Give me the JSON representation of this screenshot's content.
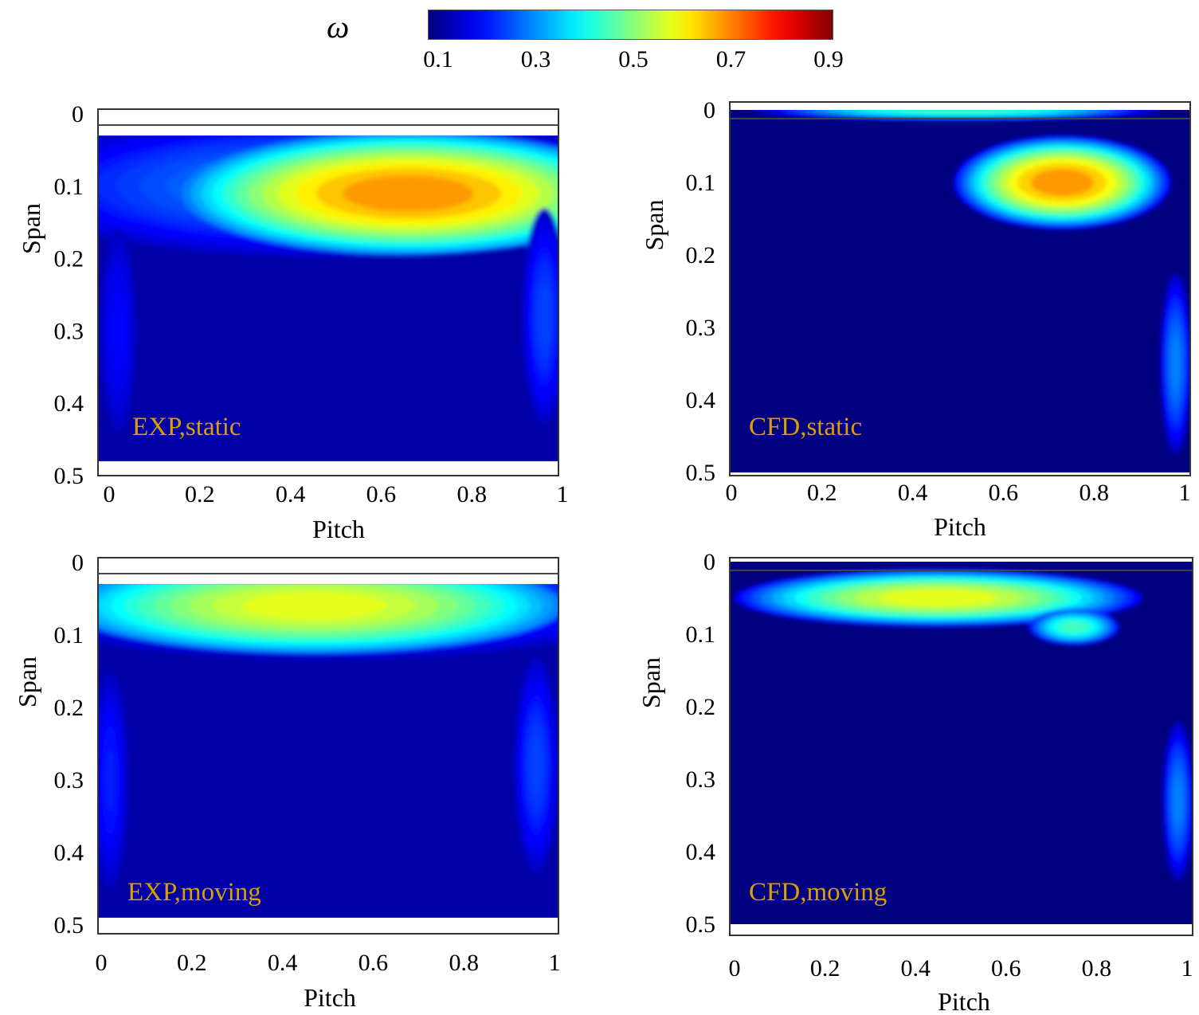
{
  "chart_data": {
    "type": "heatmap",
    "colorbar": {
      "label": "ω",
      "range": [
        0.1,
        0.9
      ],
      "ticks": [
        "0.1",
        "0.3",
        "0.5",
        "0.7",
        "0.9"
      ],
      "colormap": "jet"
    },
    "panels": [
      {
        "id": "exp-static",
        "label": "EXP,static",
        "xlabel": "Pitch",
        "ylabel": "Span",
        "xticks": [
          "0",
          "0.2",
          "0.4",
          "0.6",
          "0.8",
          "1"
        ],
        "yticks": [
          "0",
          "0.1",
          "0.2",
          "0.3",
          "0.4",
          "0.5"
        ],
        "xlim": [
          0,
          1
        ],
        "ylim": [
          0,
          0.5
        ],
        "background": 0.13,
        "data_span": [
          0.03,
          0.48
        ],
        "features": [
          {
            "pitch": 0.5,
            "span": 0.1,
            "rp": 0.75,
            "rs": 0.2,
            "peak": 0.3,
            "min": 0.15
          },
          {
            "pitch": 0.66,
            "span": 0.11,
            "rp": 0.5,
            "rs": 0.17,
            "peak": 0.68,
            "min": 0.3
          },
          {
            "pitch": 0.96,
            "span": 0.28,
            "rp": 0.05,
            "rs": 0.3,
            "peak": 0.25,
            "min": 0.15
          },
          {
            "pitch": 0.02,
            "span": 0.3,
            "rp": 0.04,
            "rs": 0.28,
            "peak": 0.2,
            "min": 0.15
          }
        ]
      },
      {
        "id": "cfd-static",
        "label": "CFD,static",
        "xlabel": "Pitch",
        "ylabel": "Span",
        "xticks": [
          "0",
          "0.2",
          "0.4",
          "0.6",
          "0.8",
          "1"
        ],
        "yticks": [
          "0",
          "0.1",
          "0.2",
          "0.3",
          "0.4",
          "0.5"
        ],
        "xlim": [
          0,
          1
        ],
        "ylim": [
          0,
          0.5
        ],
        "background": 0.1,
        "data_span": [
          0,
          0.5
        ],
        "features": [
          {
            "pitch": 0.5,
            "span": 0.0,
            "rp": 0.45,
            "rs": 0.03,
            "peak": 0.45,
            "min": 0.15
          },
          {
            "pitch": 0.73,
            "span": 0.1,
            "rp": 0.24,
            "rs": 0.13,
            "peak": 0.68,
            "min": 0.2
          },
          {
            "pitch": 0.98,
            "span": 0.35,
            "rp": 0.035,
            "rs": 0.25,
            "peak": 0.3,
            "min": 0.15
          }
        ]
      },
      {
        "id": "exp-moving",
        "label": "EXP,moving",
        "xlabel": "Pitch",
        "ylabel": "Span",
        "xticks": [
          "0",
          "0.2",
          "0.4",
          "0.6",
          "0.8",
          "1"
        ],
        "yticks": [
          "0",
          "0.1",
          "0.2",
          "0.3",
          "0.4",
          "0.5"
        ],
        "xlim": [
          0,
          1
        ],
        "ylim": [
          0,
          0.5
        ],
        "background": 0.13,
        "data_span": [
          0.03,
          0.49
        ],
        "features": [
          {
            "pitch": 0.5,
            "span": 0.05,
            "rp": 0.75,
            "rs": 0.17,
            "peak": 0.3,
            "min": 0.15
          },
          {
            "pitch": 0.47,
            "span": 0.06,
            "rp": 0.55,
            "rs": 0.13,
            "peak": 0.58,
            "min": 0.3
          },
          {
            "pitch": 0.96,
            "span": 0.28,
            "rp": 0.05,
            "rs": 0.3,
            "peak": 0.25,
            "min": 0.15
          },
          {
            "pitch": 0.02,
            "span": 0.3,
            "rp": 0.04,
            "rs": 0.3,
            "peak": 0.22,
            "min": 0.15
          }
        ]
      },
      {
        "id": "cfd-moving",
        "label": "CFD,moving",
        "xlabel": "Pitch",
        "ylabel": "Span",
        "xticks": [
          "0",
          "0.2",
          "0.4",
          "0.6",
          "0.8",
          "1"
        ],
        "yticks": [
          "0",
          "0.1",
          "0.2",
          "0.3",
          "0.4",
          "0.5"
        ],
        "xlim": [
          0,
          1
        ],
        "ylim": [
          0,
          0.5
        ],
        "background": 0.1,
        "data_span": [
          0,
          0.5
        ],
        "features": [
          {
            "pitch": 0.45,
            "span": 0.05,
            "rp": 0.45,
            "rs": 0.08,
            "peak": 0.58,
            "min": 0.2
          },
          {
            "pitch": 0.75,
            "span": 0.09,
            "rp": 0.1,
            "rs": 0.05,
            "peak": 0.45,
            "min": 0.2
          },
          {
            "pitch": 0.98,
            "span": 0.33,
            "rp": 0.035,
            "rs": 0.22,
            "peak": 0.3,
            "min": 0.15
          }
        ]
      }
    ]
  }
}
